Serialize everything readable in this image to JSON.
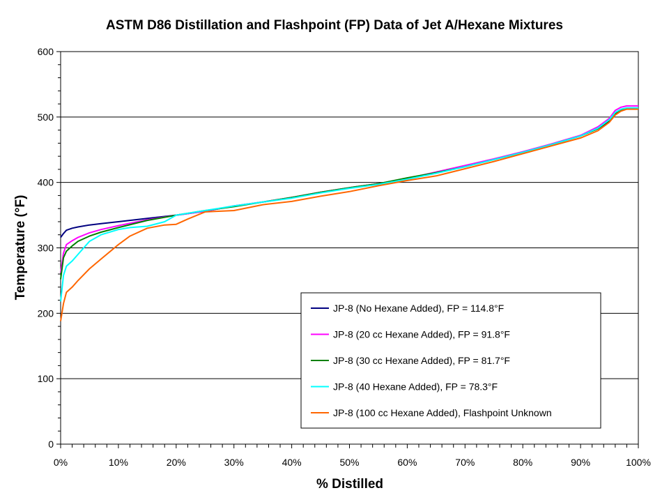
{
  "chart_data": {
    "type": "line",
    "title": "ASTM D86 Distillation and Flashpoint (FP) Data of Jet A/Hexane Mixtures",
    "xlabel": "% Distilled",
    "ylabel": "Temperature (°F)",
    "xlim": [
      0,
      100
    ],
    "ylim": [
      0,
      600
    ],
    "x_ticks": [
      "0%",
      "10%",
      "20%",
      "30%",
      "40%",
      "50%",
      "60%",
      "70%",
      "80%",
      "90%",
      "100%"
    ],
    "y_ticks": [
      "0",
      "100",
      "200",
      "300",
      "400",
      "500",
      "600"
    ],
    "grid": "horizontal major lines",
    "legend_position": "lower-right",
    "series": [
      {
        "name": "JP-8 (No Hexane Added), FP = 114.8°F",
        "color": "#000080",
        "x": [
          0,
          0.5,
          1,
          2,
          3,
          5,
          7,
          10,
          15,
          20,
          25,
          30,
          35,
          40,
          45,
          50,
          55,
          60,
          65,
          70,
          75,
          80,
          85,
          90,
          93,
          95,
          96,
          97,
          98,
          99,
          100
        ],
        "y": [
          316,
          322,
          327,
          330,
          332,
          335,
          337,
          340,
          345,
          350,
          356,
          364,
          370,
          377,
          385,
          392,
          398,
          406,
          415,
          425,
          435,
          446,
          458,
          471,
          482,
          494,
          505,
          511,
          513,
          513,
          513
        ]
      },
      {
        "name": "JP-8 (20 cc Hexane Added), FP = 91.8°F",
        "color": "#FF00FF",
        "x": [
          0,
          0.5,
          1,
          2,
          3,
          5,
          7,
          10,
          15,
          20,
          25,
          30,
          35,
          40,
          45,
          50,
          55,
          60,
          65,
          70,
          75,
          80,
          85,
          90,
          93,
          95,
          96,
          97,
          98,
          99,
          100
        ],
        "y": [
          262,
          292,
          305,
          311,
          316,
          323,
          328,
          334,
          343,
          350,
          356,
          364,
          370,
          377,
          385,
          392,
          398,
          406,
          416,
          426,
          436,
          447,
          459,
          472,
          485,
          498,
          510,
          515,
          517,
          517,
          517
        ]
      },
      {
        "name": "JP-8 (30 cc Hexane Added), FP = 81.7°F",
        "color": "#008000",
        "x": [
          0,
          0.5,
          1,
          2,
          3,
          5,
          7,
          10,
          15,
          20,
          25,
          30,
          35,
          40,
          45,
          50,
          55,
          60,
          65,
          70,
          75,
          80,
          85,
          90,
          93,
          95,
          96,
          97,
          98,
          99,
          100
        ],
        "y": [
          252,
          285,
          295,
          303,
          310,
          318,
          324,
          331,
          342,
          350,
          357,
          363,
          370,
          377,
          385,
          392,
          398,
          407,
          415,
          424,
          435,
          446,
          458,
          471,
          482,
          495,
          506,
          511,
          513,
          513,
          513
        ]
      },
      {
        "name": "JP-8 (40 Hexane Added), FP = 78.3°F",
        "color": "#00FFFF",
        "x": [
          0,
          0.5,
          1,
          2,
          3,
          5,
          7,
          10,
          12,
          15,
          18,
          20,
          25,
          30,
          35,
          40,
          45,
          50,
          55,
          60,
          65,
          70,
          75,
          80,
          85,
          90,
          93,
          95,
          96,
          97,
          98,
          99,
          100
        ],
        "y": [
          218,
          258,
          272,
          280,
          290,
          310,
          320,
          328,
          331,
          333,
          340,
          350,
          357,
          364,
          370,
          376,
          384,
          391,
          397,
          405,
          414,
          424,
          435,
          446,
          458,
          471,
          483,
          496,
          507,
          512,
          514,
          514,
          514
        ]
      },
      {
        "name": "JP-8 (100 cc Hexane Added), Flashpoint Unknown",
        "color": "#FF6600",
        "x": [
          0,
          0.5,
          1,
          2,
          3,
          5,
          7,
          10,
          12,
          15,
          18,
          20,
          22,
          25,
          30,
          35,
          40,
          45,
          50,
          55,
          60,
          65,
          70,
          75,
          80,
          85,
          90,
          93,
          95,
          96,
          97,
          98,
          99,
          100
        ],
        "y": [
          188,
          215,
          232,
          240,
          250,
          268,
          283,
          305,
          318,
          330,
          335,
          336,
          344,
          355,
          357,
          366,
          371,
          379,
          386,
          395,
          403,
          410,
          421,
          432,
          444,
          456,
          468,
          479,
          492,
          503,
          509,
          512,
          512,
          512
        ]
      }
    ]
  }
}
